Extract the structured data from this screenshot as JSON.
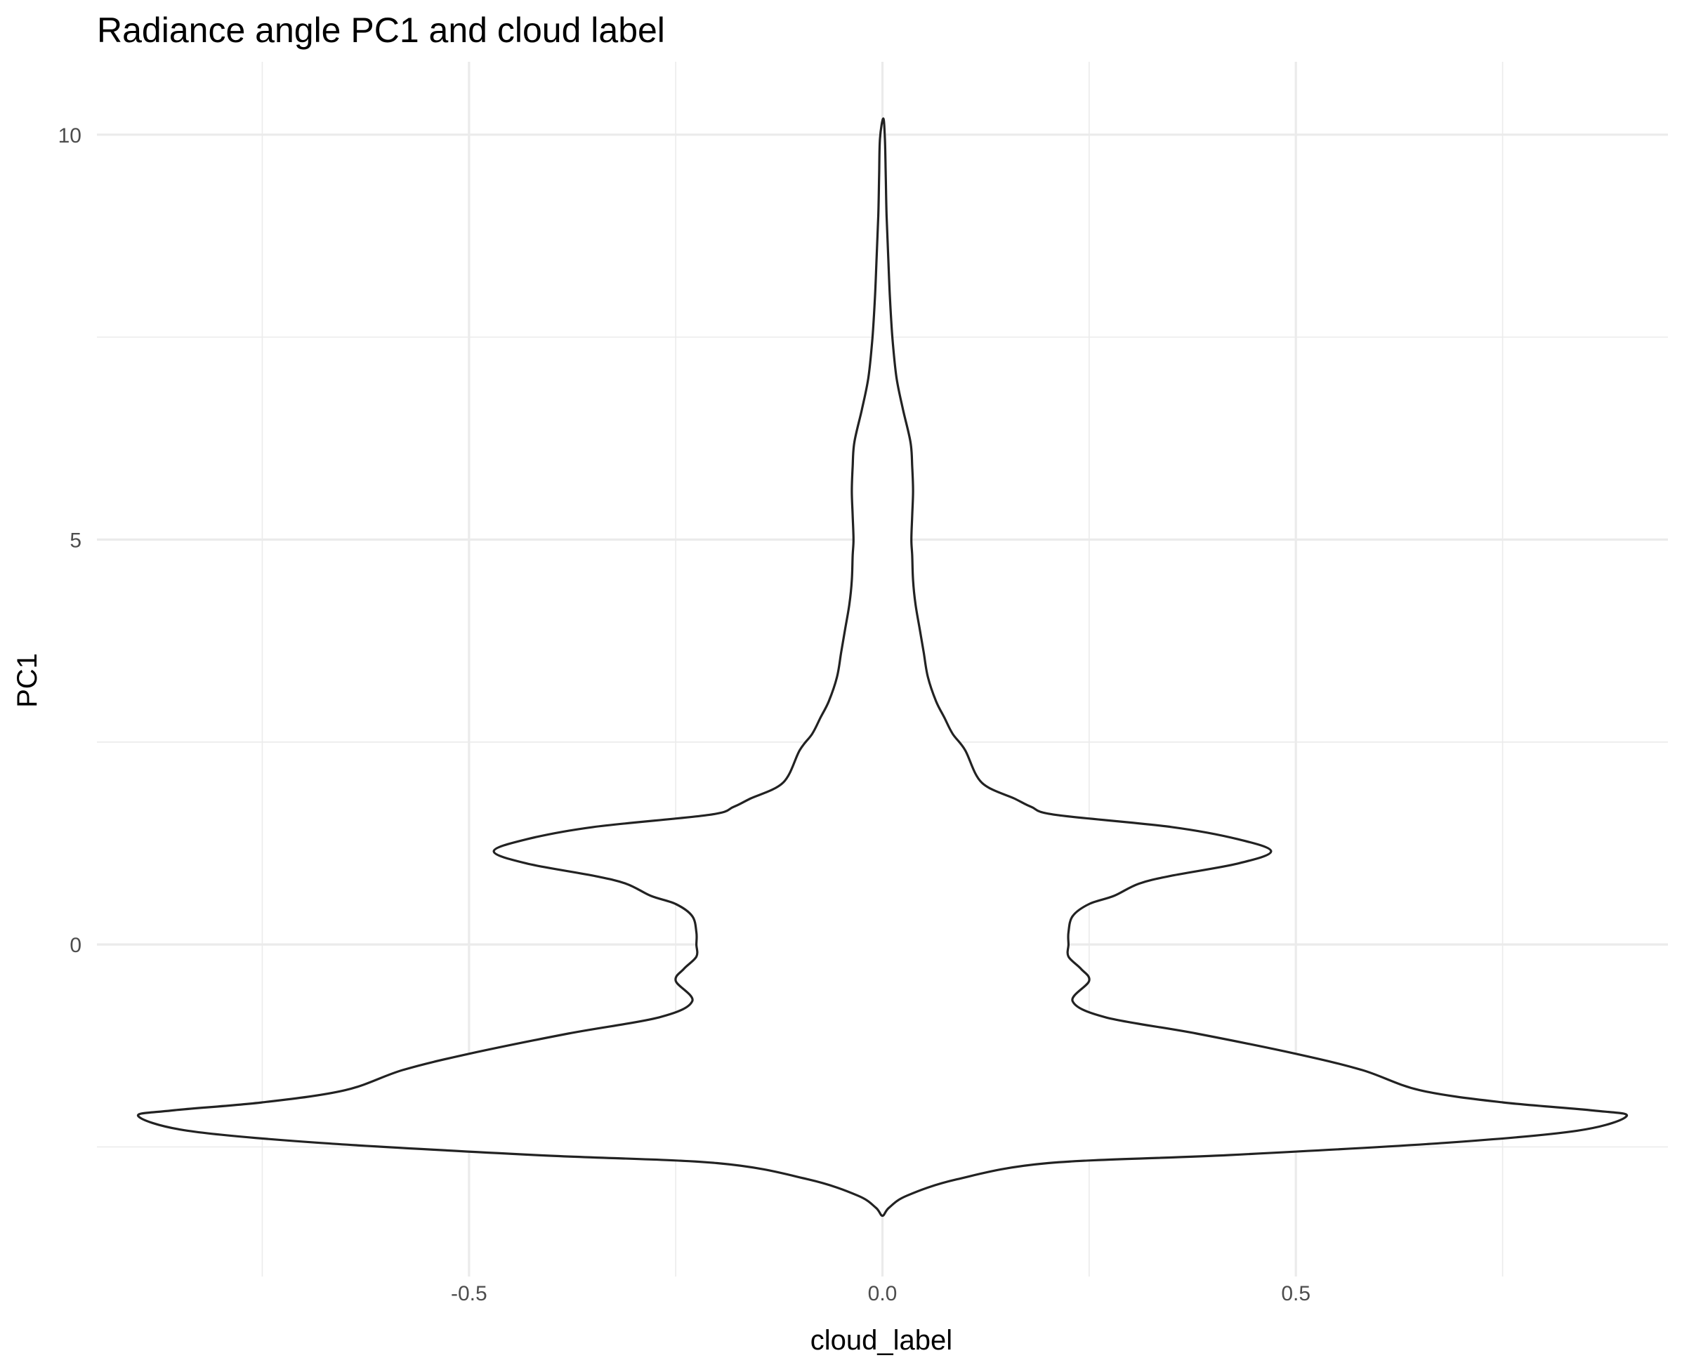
{
  "title": "Radiance angle PC1 and cloud label",
  "xlabel": "cloud_label",
  "ylabel": "PC1",
  "colors": {
    "outline": "#222222",
    "fill": "#ffffff",
    "grid": "#ebebeb",
    "tick_text": "#4d4d4d"
  },
  "chart_data": {
    "type": "violin",
    "title": "Radiance angle PC1 and cloud label",
    "xlabel": "cloud_label",
    "ylabel": "PC1",
    "xlim": [
      -0.95,
      0.95
    ],
    "ylim": [
      -4.1,
      10.9
    ],
    "x_ticks": [
      -0.5,
      0.0,
      0.5
    ],
    "x_tick_labels": [
      "-0.5",
      "0.0",
      "0.5"
    ],
    "x_minor_ticks": [
      -0.75,
      -0.25,
      0.25,
      0.75
    ],
    "y_ticks": [
      0,
      5,
      10
    ],
    "y_tick_labels": [
      "0",
      "5",
      "10"
    ],
    "y_minor_ticks": [
      -2.5,
      2.5,
      7.5
    ],
    "grid": true,
    "legend": "none",
    "center": 0.0,
    "profile": {
      "y": [
        -3.35,
        -3.25,
        -3.1,
        -2.9,
        -2.7,
        -2.6,
        -2.45,
        -2.3,
        -2.12,
        -2.05,
        -1.95,
        -1.8,
        -1.55,
        -1.35,
        -1.1,
        -0.9,
        -0.7,
        -0.45,
        -0.3,
        -0.15,
        0.0,
        0.15,
        0.35,
        0.5,
        0.6,
        0.75,
        0.85,
        1.0,
        1.15,
        1.3,
        1.45,
        1.6,
        1.7,
        1.8,
        2.0,
        2.4,
        2.6,
        2.8,
        3.0,
        3.3,
        3.6,
        3.9,
        4.2,
        4.5,
        4.8,
        5.0,
        5.3,
        5.6,
        5.9,
        6.2,
        6.6,
        7.0,
        7.5,
        8.0,
        8.5,
        9.0,
        9.5,
        9.95,
        10.2
      ],
      "half_width": [
        0.0,
        0.008,
        0.03,
        0.09,
        0.2,
        0.42,
        0.68,
        0.84,
        0.9,
        0.86,
        0.75,
        0.65,
        0.58,
        0.5,
        0.38,
        0.27,
        0.23,
        0.25,
        0.24,
        0.225,
        0.225,
        0.225,
        0.23,
        0.25,
        0.28,
        0.31,
        0.35,
        0.43,
        0.47,
        0.43,
        0.35,
        0.21,
        0.18,
        0.16,
        0.12,
        0.1,
        0.085,
        0.075,
        0.065,
        0.055,
        0.05,
        0.045,
        0.04,
        0.037,
        0.036,
        0.035,
        0.036,
        0.037,
        0.036,
        0.034,
        0.025,
        0.017,
        0.012,
        0.009,
        0.007,
        0.005,
        0.004,
        0.003,
        0.001
      ]
    }
  }
}
